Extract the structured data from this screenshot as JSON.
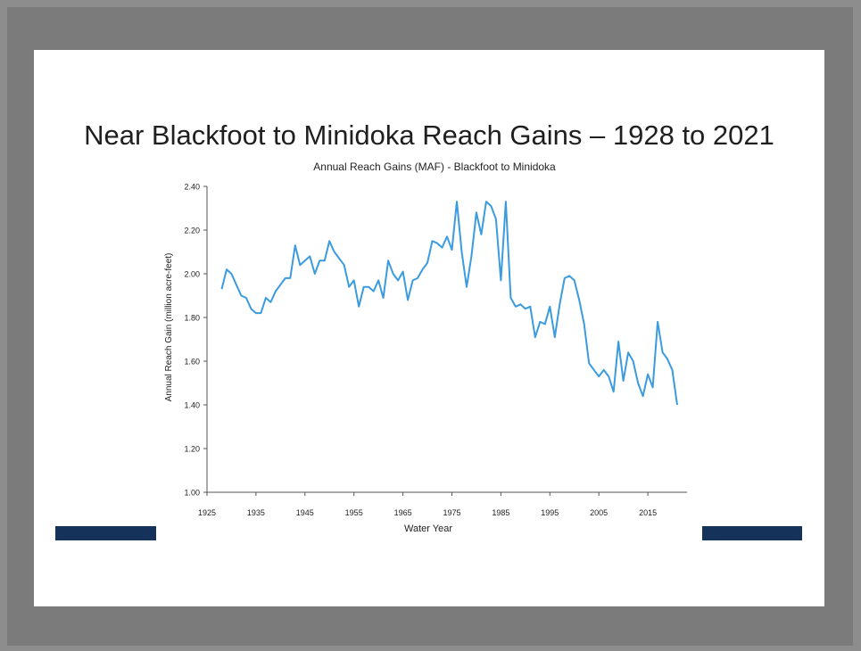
{
  "slide": {
    "title": "Near Blackfoot to Minidoka Reach Gains – 1928 to 2021"
  },
  "colors": {
    "background": "#8d8d8d",
    "slide": "#ffffff",
    "accent_bar": "#15335a",
    "series": "#3a9be0"
  },
  "chart_data": {
    "type": "line",
    "title": "Annual Reach Gains (MAF) - Blackfoot to Minidoka",
    "xlabel": "Water Year",
    "ylabel": "Annual Reach Gain (million acre-feet)",
    "xlim": [
      1925,
      2023
    ],
    "ylim": [
      1.0,
      2.4
    ],
    "xticks": [
      "1925",
      "1935",
      "1945",
      "1955",
      "1965",
      "1975",
      "1985",
      "1995",
      "2005",
      "2015"
    ],
    "yticks": [
      "1.00",
      "1.20",
      "1.40",
      "1.60",
      "1.80",
      "2.00",
      "2.20",
      "2.40"
    ],
    "grid": false,
    "series": [
      {
        "x": [
          1928,
          1929,
          1930,
          1931,
          1932,
          1933,
          1934,
          1935,
          1936,
          1937,
          1938,
          1939,
          1940,
          1941,
          1942,
          1943,
          1944,
          1945,
          1946,
          1947,
          1948,
          1949,
          1950,
          1951,
          1952,
          1953,
          1954,
          1955,
          1956,
          1957,
          1958,
          1959,
          1960,
          1961,
          1962,
          1963,
          1964,
          1965,
          1966,
          1967,
          1968,
          1969,
          1970,
          1971,
          1972,
          1973,
          1974,
          1975,
          1976,
          1977,
          1978,
          1979,
          1980,
          1981,
          1982,
          1983,
          1984,
          1985,
          1986,
          1987,
          1988,
          1989,
          1990,
          1991,
          1992,
          1993,
          1994,
          1995,
          1996,
          1997,
          1998,
          1999,
          2000,
          2001,
          2002,
          2003,
          2004,
          2005,
          2006,
          2007,
          2008,
          2009,
          2010,
          2011,
          2012,
          2013,
          2014,
          2015,
          2016,
          2017,
          2018,
          2019,
          2020,
          2021
        ],
        "values": [
          1.93,
          2.02,
          2.0,
          1.95,
          1.9,
          1.89,
          1.84,
          1.82,
          1.82,
          1.89,
          1.87,
          1.92,
          1.95,
          1.98,
          1.98,
          2.13,
          2.04,
          2.06,
          2.08,
          2.0,
          2.06,
          2.06,
          2.15,
          2.1,
          2.07,
          2.04,
          1.94,
          1.97,
          1.85,
          1.94,
          1.94,
          1.92,
          1.97,
          1.89,
          2.06,
          2.0,
          1.97,
          2.01,
          1.88,
          1.97,
          1.98,
          2.02,
          2.05,
          2.15,
          2.14,
          2.12,
          2.17,
          2.11,
          2.33,
          2.1,
          1.94,
          2.08,
          2.28,
          2.18,
          2.33,
          2.31,
          2.25,
          1.97,
          2.33,
          1.89,
          1.85,
          1.86,
          1.84,
          1.85,
          1.71,
          1.78,
          1.77,
          1.85,
          1.71,
          1.86,
          1.98,
          1.99,
          1.97,
          1.88,
          1.77,
          1.59,
          1.56,
          1.53,
          1.56,
          1.53,
          1.46,
          1.69,
          1.51,
          1.64,
          1.6,
          1.5,
          1.44,
          1.54,
          1.48,
          1.78,
          1.64,
          1.61,
          1.56,
          1.4
        ]
      }
    ]
  }
}
